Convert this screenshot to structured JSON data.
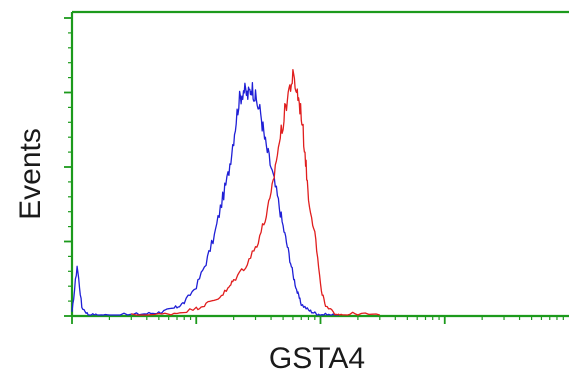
{
  "chart_data": {
    "type": "line",
    "xlabel": "GSTA4",
    "ylabel": "Events",
    "x_scale": "log",
    "xlim": [
      1,
      10000
    ],
    "ylim": [
      0,
      100
    ],
    "grid": false,
    "axis_color": "#1c9a1c",
    "series": [
      {
        "color": "#1f1fd6",
        "x": [
          1,
          1.1,
          1.2,
          1.35,
          1.6,
          2,
          3,
          4,
          5,
          6,
          7,
          8,
          10,
          12,
          14,
          16,
          18,
          20,
          22,
          24,
          26,
          28,
          30,
          33,
          36,
          40,
          45,
          50,
          55,
          60,
          65,
          70,
          80,
          90,
          100,
          120,
          140
        ],
        "y": [
          1,
          17,
          3,
          0.5,
          0.3,
          0.3,
          0.5,
          0.8,
          1.2,
          2,
          3,
          4.5,
          10,
          18,
          27,
          38,
          47,
          60,
          72,
          76,
          74,
          77,
          73,
          68,
          58,
          50,
          40,
          30,
          22,
          14,
          8,
          4,
          2,
          1,
          0.5,
          0.3,
          0.2
        ]
      },
      {
        "color": "#e01e1e",
        "x": [
          3,
          5,
          7,
          10,
          12,
          15,
          18,
          20,
          25,
          30,
          35,
          40,
          45,
          50,
          55,
          60,
          65,
          70,
          75,
          80,
          90,
          100,
          110,
          130,
          150,
          200,
          300
        ],
        "y": [
          0.3,
          0.5,
          1,
          2.5,
          4,
          6,
          9,
          12,
          17,
          23,
          31,
          40,
          55,
          65,
          75,
          80,
          75,
          68,
          55,
          40,
          28,
          10,
          3,
          1,
          0.5,
          0.8,
          0.2
        ]
      }
    ]
  }
}
